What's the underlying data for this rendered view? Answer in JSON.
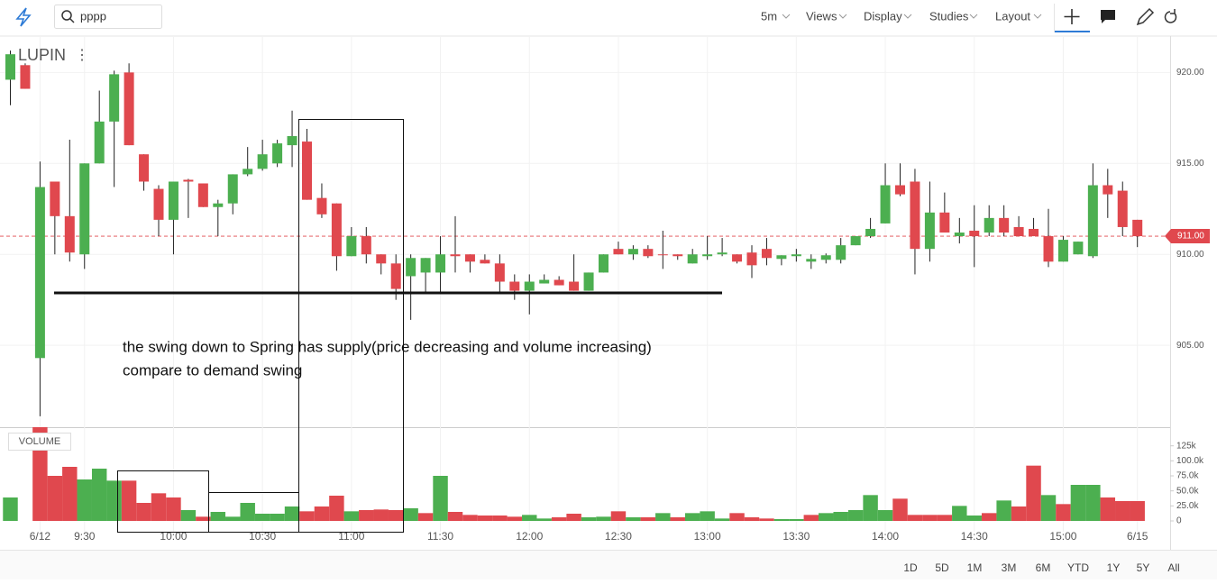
{
  "toolbar": {
    "search": "pppp",
    "menus": [
      "5m",
      "Views",
      "Display",
      "Studies",
      "Layout"
    ]
  },
  "chart_data": {
    "type": "candlestick",
    "title": "LUPIN",
    "categories": [
      null,
      null,
      "6/12",
      null,
      null,
      "9:30",
      null,
      null,
      null,
      null,
      null,
      "10:00",
      null,
      null,
      null,
      null,
      null,
      "10:30",
      null,
      null,
      null,
      null,
      null,
      "11:00",
      null,
      null,
      null,
      null,
      null,
      "11:30",
      null,
      null,
      null,
      null,
      null,
      "12:00",
      null,
      null,
      null,
      null,
      null,
      "12:30",
      null,
      null,
      null,
      null,
      null,
      "13:00",
      null,
      null,
      null,
      null,
      null,
      "13:30",
      null,
      null,
      null,
      null,
      null,
      "14:00",
      null,
      null,
      null,
      null,
      null,
      "14:30",
      null,
      null,
      null,
      null,
      null,
      "15:00",
      null,
      null,
      null,
      null,
      "6/15"
    ],
    "open": [
      919.6,
      920.4,
      904.3,
      914.0,
      912.1,
      910.0,
      915.0,
      917.3,
      920.0,
      915.5,
      913.6,
      911.9,
      914.1,
      913.9,
      912.6,
      912.8,
      914.4,
      914.7,
      915.0,
      916.0,
      916.2,
      913.1,
      912.8,
      909.9,
      911.0,
      910.0,
      909.5,
      908.8,
      909.0,
      909.0,
      910.0,
      910.0,
      909.7,
      909.5,
      908.5,
      908.0,
      908.4,
      908.6,
      908.5,
      908.0,
      909.0,
      910.3,
      910.0,
      910.3,
      910.0,
      910.0,
      909.5,
      909.9,
      910.0,
      910.0,
      910.1,
      910.3,
      909.75,
      909.9,
      909.6,
      909.7,
      909.7,
      910.5,
      911.0,
      911.7,
      913.8,
      914.0,
      910.3,
      912.3,
      911.0,
      911.3,
      911.2,
      912.0,
      911.5,
      911.4,
      911.0,
      909.6,
      910.0,
      909.9,
      913.8,
      913.5,
      911.9
    ],
    "high": [
      921.2,
      920.5,
      915.1,
      914.0,
      916.3,
      915.0,
      919.0,
      920.1,
      920.5,
      915.5,
      913.8,
      914.0,
      914.15,
      913.9,
      913.0,
      914.4,
      915.9,
      916.3,
      916.3,
      917.9,
      916.9,
      913.9,
      912.8,
      911.5,
      911.5,
      910.0,
      910.0,
      910.0,
      909.8,
      911.0,
      912.1,
      910.0,
      910.0,
      910.0,
      908.9,
      908.9,
      908.9,
      908.8,
      910.0,
      909.0,
      910.0,
      910.7,
      910.5,
      910.5,
      911.3,
      910.0,
      910.3,
      911.0,
      910.9,
      910.0,
      910.5,
      910.9,
      909.95,
      910.3,
      910.0,
      910.05,
      910.9,
      911.0,
      912.0,
      915.0,
      915.0,
      914.7,
      914.0,
      913.4,
      912.0,
      912.7,
      912.7,
      912.7,
      912.1,
      912.0,
      912.5,
      911.0,
      910.7,
      915.0,
      914.7,
      914.0,
      911.9
    ],
    "low": [
      918.2,
      919.1,
      901.1,
      910.0,
      909.6,
      909.2,
      915.0,
      913.7,
      916.0,
      913.5,
      911.0,
      910.0,
      912.0,
      912.6,
      911.0,
      912.2,
      914.3,
      914.6,
      914.8,
      914.8,
      913.0,
      912.0,
      909.1,
      909.9,
      909.5,
      908.9,
      907.5,
      906.4,
      907.9,
      907.9,
      909.0,
      909.0,
      909.5,
      907.9,
      907.5,
      906.7,
      908.4,
      908.3,
      908.0,
      908.0,
      909.0,
      910.0,
      909.7,
      909.8,
      909.2,
      909.7,
      909.5,
      909.7,
      909.9,
      909.5,
      908.7,
      909.4,
      909.4,
      909.6,
      909.2,
      909.5,
      909.5,
      910.5,
      910.9,
      911.7,
      913.2,
      908.9,
      909.6,
      911.2,
      910.6,
      909.3,
      911.0,
      911.0,
      911.0,
      911.0,
      909.3,
      909.6,
      910.0,
      909.8,
      912.0,
      911.0,
      910.4
    ],
    "close": [
      921.0,
      919.1,
      913.7,
      912.1,
      910.1,
      915.0,
      917.3,
      919.9,
      916.0,
      914.0,
      911.9,
      914.0,
      914.0,
      912.6,
      912.8,
      914.4,
      914.7,
      915.5,
      916.1,
      916.5,
      913.0,
      912.2,
      909.9,
      911.0,
      910.0,
      909.5,
      908.1,
      909.8,
      909.8,
      910.0,
      909.9,
      909.6,
      909.5,
      908.5,
      908.0,
      908.5,
      908.6,
      908.3,
      908.0,
      909.0,
      910.0,
      910.0,
      910.3,
      909.9,
      909.95,
      909.9,
      910.0,
      910.0,
      910.1,
      909.6,
      909.4,
      909.8,
      909.95,
      910.0,
      909.75,
      909.95,
      910.5,
      911.0,
      911.4,
      913.8,
      913.3,
      910.3,
      912.3,
      911.2,
      911.2,
      911.0,
      912.0,
      911.2,
      911.0,
      911.0,
      909.6,
      910.8,
      910.7,
      913.8,
      913.3,
      911.5,
      911.0
    ],
    "ylim": [
      900.5,
      922
    ],
    "yticks": [
      {
        "value": 905,
        "label": "905.00"
      },
      {
        "value": 910,
        "label": "910.00"
      },
      {
        "value": 915,
        "label": "915.00"
      },
      {
        "value": 920,
        "label": "920.00"
      }
    ],
    "last_price": {
      "value": 911,
      "label": "911.00"
    },
    "up_color": "#4caf50",
    "down_color": "#e0484e",
    "volume": {
      "label": "VOLUME",
      "values": [
        39000,
        0,
        157000,
        75000,
        90000,
        69000,
        87000,
        67000,
        67000,
        30000,
        46000,
        39000,
        18000,
        7000,
        15000,
        7000,
        30000,
        12000,
        12000,
        24000,
        16000,
        24000,
        42000,
        16000,
        18000,
        19000,
        18000,
        21000,
        13000,
        75000,
        15000,
        10000,
        9000,
        9000,
        7000,
        10000,
        4000,
        6000,
        12000,
        6000,
        7000,
        16000,
        6000,
        6000,
        13000,
        6000,
        13000,
        16000,
        4000,
        13000,
        6000,
        4000,
        3000,
        3000,
        10000,
        13000,
        15000,
        18000,
        43000,
        18000,
        37000,
        10000,
        10000,
        10000,
        25000,
        9000,
        13000,
        34000,
        24000,
        92000,
        43000,
        28000,
        60000,
        60000,
        39000,
        33000,
        33000
      ],
      "rising": [
        true,
        false,
        false,
        false,
        false,
        true,
        true,
        true,
        false,
        false,
        false,
        false,
        true,
        false,
        true,
        true,
        true,
        true,
        true,
        true,
        false,
        false,
        false,
        true,
        false,
        false,
        false,
        true,
        false,
        true,
        false,
        false,
        false,
        false,
        false,
        true,
        true,
        false,
        false,
        true,
        true,
        false,
        true,
        false,
        true,
        false,
        true,
        true,
        true,
        false,
        false,
        false,
        true,
        true,
        false,
        true,
        true,
        true,
        true,
        true,
        false,
        false,
        false,
        false,
        true,
        true,
        false,
        true,
        false,
        false,
        true,
        false,
        true,
        true,
        false,
        false,
        false
      ],
      "ylim": [
        0,
        147000
      ],
      "yticks": [
        0,
        {
          "value": 25000,
          "label": "25.0k"
        },
        {
          "value": 50000,
          "label": "50.0k"
        },
        {
          "value": 75000,
          "label": "75.0k"
        },
        {
          "value": 100000,
          "label": "100.0k"
        },
        {
          "value": 125000,
          "label": "125k"
        }
      ]
    },
    "annotation": [
      "the swing down to Spring has supply(price decreasing and volume increasing)",
      "compare to demand swing"
    ]
  },
  "range_buttons": [
    "1D",
    "5D",
    "1M",
    "3M",
    "6M",
    "YTD",
    "1Y",
    "5Y",
    "All"
  ]
}
